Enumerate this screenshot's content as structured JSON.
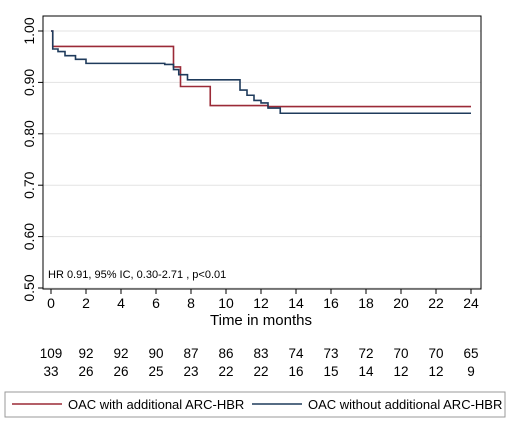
{
  "chart_data": {
    "type": "line",
    "subtype": "kaplan-meier step",
    "xlabel": "Time in months",
    "ylabel": "",
    "xlim": [
      0,
      24
    ],
    "ylim": [
      0.5,
      1.0
    ],
    "x_ticks": [
      "0",
      "2",
      "4",
      "6",
      "8",
      "10",
      "12",
      "14",
      "16",
      "18",
      "20",
      "22",
      "24"
    ],
    "y_ticks": [
      "0.50",
      "0.60",
      "0.70",
      "0.80",
      "0.90",
      "1.00"
    ],
    "grid": "horizontal",
    "annotation": "HR 0.91, 95% IC, 0.30-2.71 , p<0.01",
    "series": [
      {
        "name": "OAC with additional ARC-HBR",
        "color": "#9b2a37",
        "x": [
          0,
          0.1,
          6.5,
          7.0,
          7.4,
          9.1,
          12.4,
          24
        ],
        "y": [
          1.0,
          0.97,
          0.97,
          0.93,
          0.892,
          0.855,
          0.853,
          0.853
        ]
      },
      {
        "name": "OAC without additional ARC-HBR",
        "color": "#1f3b5c",
        "x": [
          0,
          0.1,
          0.4,
          0.8,
          1.4,
          2.0,
          6.5,
          7.0,
          7.3,
          7.8,
          10.8,
          11.2,
          11.6,
          12.0,
          12.4,
          13.1,
          24
        ],
        "y": [
          1.0,
          0.965,
          0.96,
          0.952,
          0.945,
          0.937,
          0.935,
          0.925,
          0.915,
          0.905,
          0.885,
          0.875,
          0.865,
          0.86,
          0.85,
          0.84,
          0.84
        ]
      }
    ],
    "at_risk": {
      "x": [
        0,
        2,
        4,
        6,
        8,
        10,
        12,
        14,
        16,
        18,
        20,
        22,
        24
      ],
      "rows": [
        [
          "109",
          "92",
          "92",
          "90",
          "87",
          "86",
          "83",
          "74",
          "73",
          "72",
          "70",
          "70",
          "65"
        ],
        [
          "33",
          "26",
          "26",
          "25",
          "23",
          "22",
          "22",
          "16",
          "15",
          "14",
          "12",
          "12",
          "9"
        ]
      ]
    },
    "legend": [
      {
        "label": "OAC with additional ARC-HBR",
        "color": "#9b2a37"
      },
      {
        "label": "OAC without additional ARC-HBR",
        "color": "#1f3b5c"
      }
    ],
    "legend_position": "bottom"
  }
}
